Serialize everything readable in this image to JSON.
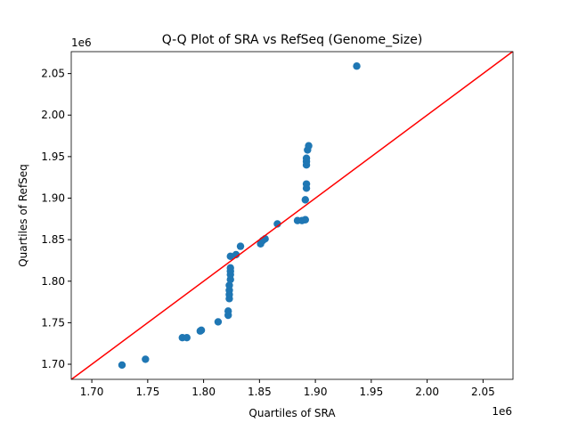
{
  "chart_data": {
    "type": "scatter",
    "title": "Q-Q Plot of SRA vs RefSeq (Genome_Size)",
    "x_label": "Quartiles of SRA",
    "y_label": "Quartiles of RefSeq",
    "x_offset": "1e6",
    "y_offset": "1e6",
    "color": "#1f77b4",
    "line_color": "#ff0000",
    "xlim": [
      1681600,
      2076800
    ],
    "ylim": [
      1681800,
      2076400
    ],
    "xticks": [
      {
        "value": 1700000,
        "label": "1.70"
      },
      {
        "value": 1750000,
        "label": "1.75"
      },
      {
        "value": 1800000,
        "label": "1.80"
      },
      {
        "value": 1850000,
        "label": "1.85"
      },
      {
        "value": 1900000,
        "label": "1.90"
      },
      {
        "value": 1950000,
        "label": "1.95"
      },
      {
        "value": 2000000,
        "label": "2.00"
      },
      {
        "value": 2050000,
        "label": "2.05"
      }
    ],
    "yticks": [
      {
        "value": 1700000,
        "label": "1.70"
      },
      {
        "value": 1750000,
        "label": "1.75"
      },
      {
        "value": 1800000,
        "label": "1.80"
      },
      {
        "value": 1850000,
        "label": "1.85"
      },
      {
        "value": 1900000,
        "label": "1.90"
      },
      {
        "value": 1950000,
        "label": "1.95"
      },
      {
        "value": 2000000,
        "label": "2.00"
      },
      {
        "value": 2050000,
        "label": "2.05"
      }
    ],
    "x": [
      1727000,
      1748000,
      1781000,
      1785000,
      1797000,
      1798000,
      1813000,
      1822000,
      1822000,
      1823000,
      1823000,
      1823000,
      1823000,
      1824000,
      1824000,
      1824000,
      1824000,
      1824000,
      1829000,
      1833000,
      1851000,
      1853000,
      1855000,
      1866000,
      1884000,
      1888000,
      1891000,
      1891000,
      1892000,
      1892000,
      1892000,
      1892000,
      1892000,
      1893000,
      1894000,
      1937000
    ],
    "y": [
      1699000,
      1706000,
      1732000,
      1732000,
      1740000,
      1741000,
      1751000,
      1759000,
      1764000,
      1779000,
      1784000,
      1789000,
      1795000,
      1802000,
      1808000,
      1812000,
      1816000,
      1830000,
      1832000,
      1842000,
      1845000,
      1849000,
      1851000,
      1869000,
      1873000,
      1873000,
      1874000,
      1898000,
      1912000,
      1917000,
      1940000,
      1944000,
      1948000,
      1958000,
      1963000,
      2059000
    ]
  }
}
